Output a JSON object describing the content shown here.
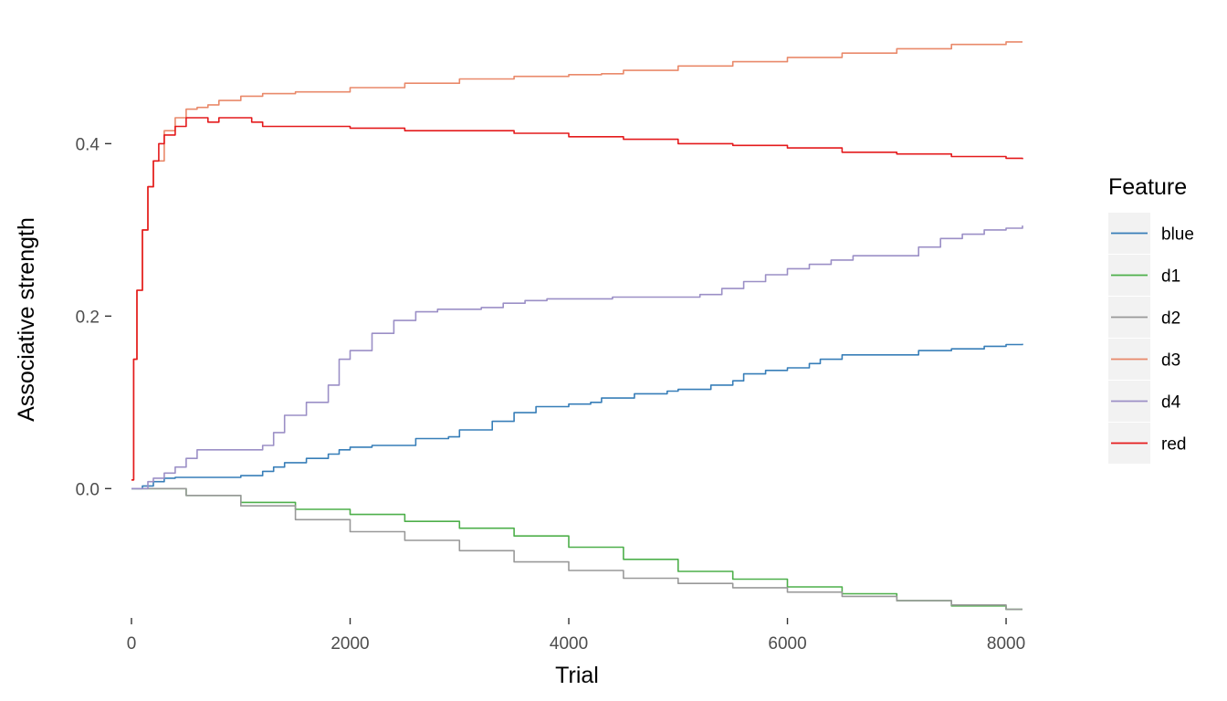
{
  "chart_data": {
    "type": "line",
    "xlabel": "Trial",
    "ylabel": "Associative strength",
    "xlim": [
      0,
      8150
    ],
    "ylim": [
      -0.15,
      0.52
    ],
    "x_ticks": [
      0,
      2000,
      4000,
      6000,
      8000
    ],
    "x_tick_labels": [
      "0",
      "2000",
      "4000",
      "6000",
      "8000"
    ],
    "y_ticks": [
      0.0,
      0.2,
      0.4
    ],
    "y_tick_labels": [
      "0.0",
      "0.2",
      "0.4"
    ],
    "grid": false,
    "legend": {
      "title": "Feature",
      "position": "right"
    },
    "series": [
      {
        "name": "blue",
        "color": "#377EB8",
        "x": [
          0,
          100,
          200,
          300,
          400,
          500,
          700,
          800,
          1000,
          1200,
          1300,
          1400,
          1600,
          1800,
          1900,
          2000,
          2200,
          2500,
          2600,
          2900,
          3000,
          3300,
          3500,
          3700,
          4000,
          4200,
          4300,
          4600,
          4900,
          5000,
          5300,
          5500,
          5600,
          5800,
          6000,
          6200,
          6300,
          6500,
          6700,
          7000,
          7200,
          7500,
          7800,
          8000,
          8150
        ],
        "y": [
          0.0,
          0.003,
          0.008,
          0.012,
          0.013,
          0.013,
          0.013,
          0.013,
          0.015,
          0.02,
          0.025,
          0.03,
          0.035,
          0.04,
          0.045,
          0.048,
          0.05,
          0.05,
          0.058,
          0.06,
          0.068,
          0.078,
          0.088,
          0.095,
          0.098,
          0.1,
          0.105,
          0.11,
          0.113,
          0.115,
          0.12,
          0.125,
          0.133,
          0.137,
          0.14,
          0.145,
          0.15,
          0.155,
          0.155,
          0.155,
          0.16,
          0.162,
          0.165,
          0.167,
          0.168
        ]
      },
      {
        "name": "d1",
        "color": "#4DAF4A",
        "x": [
          0,
          500,
          1000,
          1500,
          2000,
          2500,
          3000,
          3500,
          4000,
          4500,
          5000,
          5500,
          6000,
          6500,
          7000,
          7500,
          8000,
          8150
        ],
        "y": [
          0.0,
          -0.008,
          -0.016,
          -0.024,
          -0.03,
          -0.038,
          -0.046,
          -0.055,
          -0.068,
          -0.082,
          -0.096,
          -0.105,
          -0.114,
          -0.122,
          -0.13,
          -0.136,
          -0.14,
          -0.14
        ]
      },
      {
        "name": "d2",
        "color": "#999999",
        "x": [
          0,
          500,
          1000,
          1500,
          2000,
          2500,
          3000,
          3500,
          4000,
          4500,
          5000,
          5500,
          6000,
          6500,
          7000,
          7500,
          8000,
          8150
        ],
        "y": [
          0.0,
          -0.008,
          -0.02,
          -0.036,
          -0.05,
          -0.06,
          -0.072,
          -0.085,
          -0.095,
          -0.104,
          -0.11,
          -0.115,
          -0.12,
          -0.125,
          -0.13,
          -0.135,
          -0.14,
          -0.14
        ]
      },
      {
        "name": "d3",
        "color": "#E9896A",
        "x": [
          0,
          20,
          50,
          100,
          150,
          200,
          300,
          400,
          500,
          600,
          700,
          800,
          1000,
          1200,
          1500,
          2000,
          2500,
          3000,
          3500,
          4000,
          4300,
          4500,
          5000,
          5500,
          6000,
          6500,
          7000,
          7500,
          8000,
          8150
        ],
        "y": [
          0.01,
          0.15,
          0.23,
          0.3,
          0.35,
          0.38,
          0.415,
          0.43,
          0.44,
          0.442,
          0.445,
          0.45,
          0.455,
          0.458,
          0.46,
          0.465,
          0.47,
          0.475,
          0.478,
          0.48,
          0.481,
          0.485,
          0.49,
          0.495,
          0.5,
          0.505,
          0.51,
          0.515,
          0.518,
          0.518
        ]
      },
      {
        "name": "d4",
        "color": "#9B8FC6",
        "x": [
          0,
          100,
          150,
          200,
          300,
          400,
          500,
          600,
          800,
          1000,
          1200,
          1300,
          1400,
          1600,
          1800,
          1900,
          2000,
          2200,
          2400,
          2600,
          2800,
          3000,
          3200,
          3400,
          3600,
          3800,
          4000,
          4200,
          4400,
          4600,
          4800,
          5000,
          5200,
          5400,
          5600,
          5800,
          6000,
          6200,
          6400,
          6600,
          6800,
          7000,
          7200,
          7400,
          7600,
          7800,
          8000,
          8150
        ],
        "y": [
          0.0,
          0.0,
          0.008,
          0.012,
          0.018,
          0.025,
          0.035,
          0.045,
          0.045,
          0.045,
          0.05,
          0.065,
          0.085,
          0.1,
          0.12,
          0.15,
          0.16,
          0.18,
          0.195,
          0.205,
          0.208,
          0.208,
          0.21,
          0.215,
          0.218,
          0.22,
          0.22,
          0.22,
          0.222,
          0.222,
          0.222,
          0.222,
          0.225,
          0.232,
          0.24,
          0.248,
          0.255,
          0.26,
          0.265,
          0.27,
          0.27,
          0.27,
          0.28,
          0.29,
          0.295,
          0.3,
          0.302,
          0.305
        ]
      },
      {
        "name": "red",
        "color": "#E41A1C",
        "x": [
          0,
          20,
          50,
          100,
          150,
          200,
          250,
          300,
          400,
          500,
          700,
          800,
          1000,
          1100,
          1200,
          1500,
          2000,
          2500,
          3000,
          3500,
          4000,
          4500,
          5000,
          5500,
          6000,
          6500,
          7000,
          7500,
          8000,
          8150
        ],
        "y": [
          0.01,
          0.15,
          0.23,
          0.3,
          0.35,
          0.38,
          0.4,
          0.41,
          0.42,
          0.43,
          0.425,
          0.43,
          0.43,
          0.425,
          0.42,
          0.42,
          0.418,
          0.415,
          0.415,
          0.412,
          0.408,
          0.405,
          0.4,
          0.398,
          0.395,
          0.39,
          0.388,
          0.385,
          0.383,
          0.382
        ]
      }
    ]
  }
}
